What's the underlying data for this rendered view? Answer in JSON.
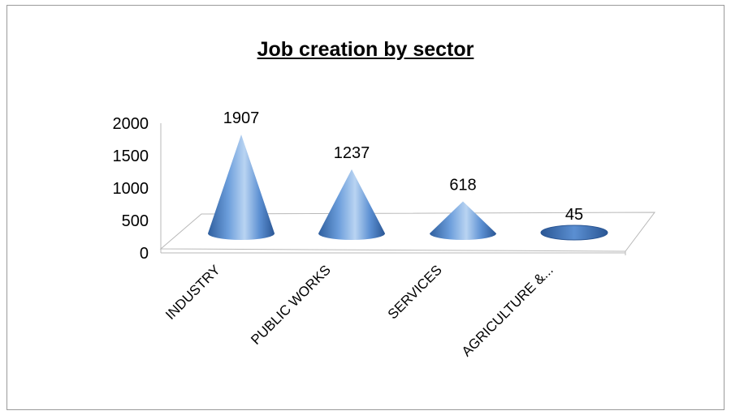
{
  "chart_data": {
    "type": "bar",
    "style": "3d-cone",
    "title": "Job creation by sector",
    "categories": [
      "INDUSTRY",
      "PUBLIC WORKS",
      "SERVICES",
      "AGRICULTURE &..."
    ],
    "values": [
      1907,
      1237,
      618,
      45
    ],
    "data_labels": [
      "1907",
      "1237",
      "618",
      "45"
    ],
    "y_ticks": [
      "0",
      "500",
      "1000",
      "1500",
      "2000"
    ],
    "ylim": [
      0,
      2000
    ],
    "xlabel": "",
    "ylabel": "",
    "grid": false,
    "legend": "none",
    "colors": {
      "cone_light": "#a9c8ec",
      "cone_mid": "#5b8fd2",
      "cone_dark": "#2f5f9e",
      "floor_line": "#b8b8b8"
    }
  }
}
